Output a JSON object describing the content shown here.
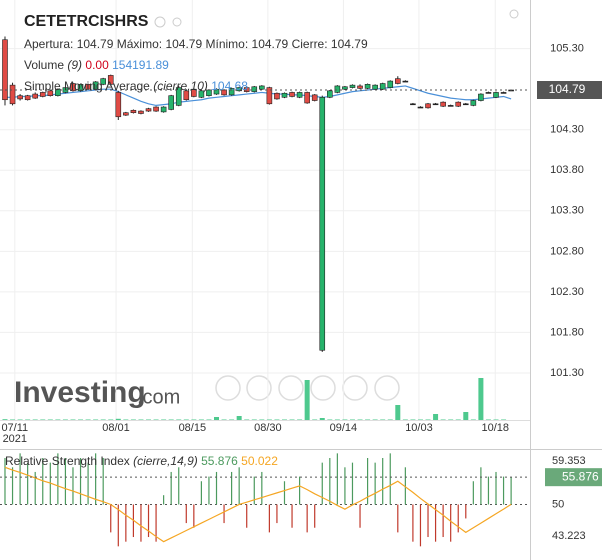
{
  "header": {
    "symbol": "CETETRCISHRS",
    "open_label": "Apertura:",
    "high_label": "Máximo:",
    "low_label": "Mínimo:",
    "close_label": "Cierre:",
    "volume_name": "Volume",
    "volume_params": "(9)",
    "volume_last": {
      "value": 0,
      "label": "0.00"
    },
    "volume_sma_last": 154191.89,
    "sma_name": "Simple Moving Average",
    "sma_params": "(cierre,10)",
    "logo": "Investing",
    "logo_suffix": ".com",
    "year": "2021"
  },
  "chart_data": [
    {
      "type": "candlestick",
      "up_color": "#26b36b",
      "down_color": "#e04b45",
      "sma_color": "#4a90d9",
      "volume_color": "#2fbf7a",
      "x": [
        0,
        1,
        2,
        3,
        4,
        5,
        6,
        7,
        8,
        9,
        10,
        11,
        12,
        13,
        14,
        15,
        16,
        17,
        18,
        19,
        20,
        21,
        22,
        23,
        24,
        25,
        26,
        27,
        28,
        29,
        30,
        31,
        32,
        33,
        34,
        35,
        36,
        37,
        38,
        39,
        40,
        41,
        42,
        43,
        44,
        45,
        46,
        47,
        48,
        49,
        50,
        51,
        52,
        53,
        54,
        55,
        56,
        57,
        58,
        59,
        60,
        61,
        62,
        63,
        64,
        65,
        66,
        67
      ],
      "open": [
        105.41,
        104.85,
        104.72,
        104.72,
        104.74,
        104.76,
        104.78,
        104.72,
        104.76,
        104.87,
        104.78,
        104.86,
        104.8,
        104.86,
        104.97,
        104.76,
        104.51,
        104.54,
        104.53,
        104.56,
        104.58,
        104.52,
        104.55,
        104.6,
        104.78,
        104.8,
        104.7,
        104.72,
        104.74,
        104.79,
        104.73,
        104.78,
        104.82,
        104.77,
        104.8,
        104.82,
        104.75,
        104.7,
        104.76,
        104.7,
        104.76,
        104.73,
        101.58,
        104.7,
        104.76,
        104.8,
        104.82,
        104.84,
        104.81,
        104.8,
        104.8,
        104.82,
        104.93,
        104.9,
        104.62,
        104.58,
        104.62,
        104.62,
        104.64,
        104.6,
        104.64,
        104.62,
        104.6,
        104.66,
        104.76,
        104.7,
        104.76,
        104.79
      ],
      "high": [
        105.45,
        104.88,
        104.74,
        104.73,
        104.76,
        104.77,
        104.79,
        104.81,
        104.83,
        104.88,
        104.87,
        104.87,
        104.9,
        104.94,
        104.98,
        104.78,
        104.52,
        104.55,
        104.54,
        104.57,
        104.59,
        104.59,
        104.73,
        104.84,
        104.8,
        104.81,
        104.79,
        104.8,
        104.81,
        104.8,
        104.82,
        104.83,
        104.84,
        104.84,
        104.85,
        104.83,
        104.76,
        104.76,
        104.77,
        104.77,
        104.77,
        104.74,
        104.72,
        104.79,
        104.85,
        104.84,
        104.86,
        104.86,
        104.87,
        104.86,
        104.88,
        104.91,
        104.96,
        104.91,
        104.63,
        104.59,
        104.63,
        104.63,
        104.65,
        104.61,
        104.65,
        104.63,
        104.67,
        104.75,
        104.77,
        104.77,
        104.77,
        104.79
      ],
      "low": [
        104.6,
        104.6,
        104.66,
        104.66,
        104.68,
        104.7,
        104.71,
        104.71,
        104.75,
        104.77,
        104.77,
        104.79,
        104.79,
        104.85,
        104.84,
        104.42,
        104.47,
        104.5,
        104.49,
        104.52,
        104.52,
        104.51,
        104.54,
        104.59,
        104.66,
        104.7,
        104.69,
        104.71,
        104.73,
        104.72,
        104.72,
        104.77,
        104.76,
        104.76,
        104.79,
        104.61,
        104.67,
        104.69,
        104.7,
        104.69,
        104.62,
        104.65,
        101.56,
        104.69,
        104.75,
        104.79,
        104.81,
        104.8,
        104.8,
        104.79,
        104.79,
        104.81,
        104.86,
        104.9,
        104.62,
        104.58,
        104.56,
        104.62,
        104.58,
        104.6,
        104.58,
        104.62,
        104.59,
        104.65,
        104.76,
        104.69,
        104.76,
        104.79
      ],
      "close": [
        104.67,
        104.62,
        104.68,
        104.67,
        104.69,
        104.71,
        104.72,
        104.8,
        104.82,
        104.78,
        104.86,
        104.8,
        104.89,
        104.93,
        104.86,
        104.46,
        104.48,
        104.51,
        104.5,
        104.53,
        104.53,
        104.58,
        104.72,
        104.82,
        104.67,
        104.71,
        104.78,
        104.79,
        104.8,
        104.73,
        104.81,
        104.82,
        104.77,
        104.83,
        104.84,
        104.62,
        104.68,
        104.75,
        104.71,
        104.76,
        104.63,
        104.66,
        104.7,
        104.78,
        104.84,
        104.83,
        104.85,
        104.81,
        104.86,
        104.85,
        104.87,
        104.9,
        104.87,
        104.9,
        104.62,
        104.58,
        104.57,
        104.62,
        104.59,
        104.6,
        104.59,
        104.62,
        104.66,
        104.74,
        104.76,
        104.76,
        104.76,
        104.79
      ],
      "sma": [
        104.7,
        104.7,
        104.71,
        104.71,
        104.72,
        104.72,
        104.73,
        104.74,
        104.75,
        104.76,
        104.77,
        104.78,
        104.79,
        104.8,
        104.8,
        104.77,
        104.73,
        104.69,
        104.65,
        104.62,
        104.6,
        104.61,
        104.62,
        104.64,
        104.65,
        104.66,
        104.67,
        104.69,
        104.7,
        104.71,
        104.72,
        104.73,
        104.74,
        104.75,
        104.76,
        104.75,
        104.74,
        104.74,
        104.73,
        104.73,
        104.72,
        104.71,
        104.7,
        104.71,
        104.73,
        104.75,
        104.77,
        104.78,
        104.79,
        104.8,
        104.81,
        104.82,
        104.83,
        104.84,
        104.81,
        104.78,
        104.75,
        104.73,
        104.71,
        104.69,
        104.68,
        104.67,
        104.67,
        104.68,
        104.69,
        104.7,
        104.71,
        104.68
      ],
      "volume": [
        8000,
        5000,
        5000,
        5000,
        5000,
        5000,
        5000,
        5000,
        5000,
        5000,
        5000,
        5000,
        5000,
        5000,
        5000,
        12000,
        5000,
        5000,
        5000,
        5000,
        5000,
        5000,
        5000,
        5000,
        5000,
        5000,
        5000,
        5000,
        30000,
        5000,
        5000,
        40000,
        5000,
        5000,
        5000,
        5000,
        5000,
        5000,
        5000,
        5000,
        400000,
        5000,
        20000,
        5000,
        5000,
        5000,
        5000,
        5000,
        5000,
        5000,
        5000,
        5000,
        150000,
        5000,
        5000,
        5000,
        5000,
        60000,
        5000,
        5000,
        5000,
        80000,
        5000,
        420000,
        5000,
        5000,
        5000,
        0
      ],
      "vlim": [
        0,
        450000
      ],
      "xlim": [
        -0.66,
        69.5
      ],
      "ylim": [
        100.72,
        105.9
      ],
      "xticks": [
        {
          "value": 1.3,
          "label": "07/11"
        },
        {
          "value": 14.7,
          "label": "08/01"
        },
        {
          "value": 24.8,
          "label": "08/15"
        },
        {
          "value": 34.8,
          "label": "08/30"
        },
        {
          "value": 44.8,
          "label": "09/14"
        },
        {
          "value": 54.8,
          "label": "10/03"
        },
        {
          "value": 64.9,
          "label": "10/18"
        }
      ],
      "yticks": [
        {
          "value": 105.3,
          "label": "105.30"
        },
        {
          "value": 104.3,
          "label": "104.30"
        },
        {
          "value": 103.8,
          "label": "103.80"
        },
        {
          "value": 103.3,
          "label": "103.30"
        },
        {
          "value": 102.8,
          "label": "102.80"
        },
        {
          "value": 102.3,
          "label": "102.30"
        },
        {
          "value": 101.8,
          "label": "101.80"
        },
        {
          "value": 101.3,
          "label": "101.30"
        }
      ]
    },
    {
      "type": "rsi",
      "title": "Relative Strength Index",
      "params": "(cierre,14,9)",
      "up_color": "#4c9a5e",
      "down_color": "#c0392b",
      "signal_color": "#f5a623",
      "values": [
        60,
        58,
        61,
        59,
        57,
        60,
        59,
        61,
        60,
        58,
        60,
        59,
        61,
        60,
        44,
        41,
        42,
        43,
        42,
        43,
        42,
        52,
        57,
        58,
        46,
        45,
        55,
        56,
        57,
        46,
        57,
        58,
        45,
        56,
        57,
        44,
        46,
        55,
        45,
        56,
        44,
        45,
        59,
        60,
        61,
        58,
        59,
        45,
        60,
        59,
        60,
        61,
        44,
        58,
        42,
        41,
        43,
        42,
        43,
        42,
        44,
        47,
        55,
        58,
        56,
        57,
        56,
        55.876
      ],
      "signal": [
        58,
        57.4,
        56.9,
        56.3,
        55.7,
        55.1,
        54.6,
        54,
        53.4,
        52.9,
        52.3,
        51.7,
        51.1,
        50.6,
        50,
        48.9,
        47.7,
        46.6,
        45.4,
        44.3,
        43.1,
        42,
        42.8,
        43.6,
        44.4,
        45.2,
        46,
        46.8,
        47.6,
        48.4,
        49.2,
        50,
        50.5,
        51,
        51.5,
        52,
        52.5,
        53,
        53.5,
        54,
        53.2,
        52.3,
        51.5,
        50.7,
        49.8,
        49,
        49.9,
        50.7,
        51.6,
        52.4,
        53.3,
        54.1,
        55,
        53.8,
        52.6,
        51.3,
        50.1,
        48.9,
        47.7,
        46.4,
        45.2,
        44,
        45,
        46,
        47,
        48,
        49,
        50.022
      ],
      "ylim": [
        38.49,
        61.29
      ],
      "yticks": [
        59.353,
        50,
        43.223
      ]
    }
  ]
}
